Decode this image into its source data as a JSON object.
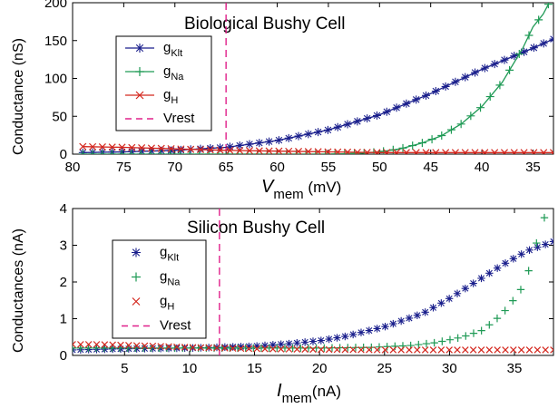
{
  "chart_data": [
    {
      "type": "line",
      "title": "Biological Bushy Cell",
      "ylabel": "Conductance (nS)",
      "xlabel_main": "V",
      "xlabel_sub": "mem",
      "xlabel_unit": " (mV)",
      "xlim": [
        80,
        33
      ],
      "ylim": [
        0,
        200
      ],
      "x_reversed": true,
      "xticks": [
        80,
        75,
        70,
        65,
        60,
        55,
        50,
        45,
        40,
        35
      ],
      "yticks": [
        0,
        50,
        100,
        150,
        200
      ],
      "legend_position": "left",
      "vrest": 65,
      "series": [
        {
          "name": "g",
          "sub": "Klt",
          "color": "#1a1f8c",
          "marker": "asterisk",
          "line": true,
          "x": [
            79,
            75,
            70,
            65,
            60,
            55,
            50,
            45,
            40,
            35,
            33
          ],
          "y": [
            2,
            3,
            5,
            9,
            18,
            32,
            52,
            80,
            112,
            140,
            152
          ]
        },
        {
          "name": "g",
          "sub": "Na",
          "color": "#1f9a55",
          "marker": "plus",
          "line": true,
          "x": [
            79,
            75,
            70,
            65,
            60,
            55,
            52,
            50,
            48,
            46,
            44,
            42,
            40,
            38,
            36,
            35,
            34,
            33.5
          ],
          "y": [
            0,
            0,
            0,
            0,
            0,
            0,
            1,
            3,
            7,
            14,
            24,
            40,
            63,
            95,
            140,
            168,
            185,
            198
          ]
        },
        {
          "name": "g",
          "sub": "H",
          "color": "#d4271e",
          "marker": "x",
          "line": true,
          "x": [
            79,
            75,
            70,
            65,
            60,
            55,
            50,
            45,
            40,
            35,
            33
          ],
          "y": [
            10,
            9,
            7,
            5,
            4,
            3,
            2,
            2,
            2,
            2,
            2
          ]
        },
        {
          "name": "Vrest",
          "color": "#e0208a",
          "marker": "none",
          "line": false,
          "dashed": true
        }
      ]
    },
    {
      "type": "scatter",
      "title": "Silicon Bushy Cell",
      "ylabel": "Conductances (nA)",
      "xlabel_main": "I",
      "xlabel_sub": "mem",
      "xlabel_unit": "(nA)",
      "xlim": [
        1,
        38
      ],
      "ylim": [
        0,
        4
      ],
      "x_reversed": false,
      "xticks": [
        5,
        10,
        15,
        20,
        25,
        30,
        35
      ],
      "yticks": [
        0,
        1,
        2,
        3,
        4
      ],
      "legend_position": "left",
      "vrest": 12.3,
      "series": [
        {
          "name": "g",
          "sub": "Klt",
          "color": "#1a1f8c",
          "marker": "asterisk",
          "line": false,
          "x": [
            1,
            5,
            10,
            15,
            18,
            20,
            22,
            25,
            28,
            30,
            32,
            34,
            36,
            38
          ],
          "y": [
            0.15,
            0.18,
            0.2,
            0.25,
            0.33,
            0.4,
            0.52,
            0.78,
            1.15,
            1.55,
            2.0,
            2.45,
            2.85,
            3.1
          ]
        },
        {
          "name": "g",
          "sub": "Na",
          "color": "#1f9a55",
          "marker": "plus",
          "line": false,
          "x": [
            1,
            5,
            10,
            15,
            20,
            24,
            27,
            29,
            31,
            32.5,
            33.5,
            34.5,
            35.5,
            36.2,
            36.8,
            37.3
          ],
          "y": [
            0.2,
            0.2,
            0.2,
            0.2,
            0.2,
            0.22,
            0.27,
            0.35,
            0.5,
            0.68,
            0.95,
            1.3,
            1.8,
            2.4,
            3.2,
            3.75
          ]
        },
        {
          "name": "g",
          "sub": "H",
          "color": "#d4271e",
          "marker": "x",
          "line": false,
          "x": [
            1,
            3,
            5,
            10,
            15,
            20,
            25,
            30,
            35,
            38
          ],
          "y": [
            0.3,
            0.3,
            0.28,
            0.22,
            0.18,
            0.16,
            0.15,
            0.15,
            0.15,
            0.15
          ]
        },
        {
          "name": "Vrest",
          "color": "#e0208a",
          "marker": "none",
          "line": false,
          "dashed": true
        }
      ]
    }
  ]
}
